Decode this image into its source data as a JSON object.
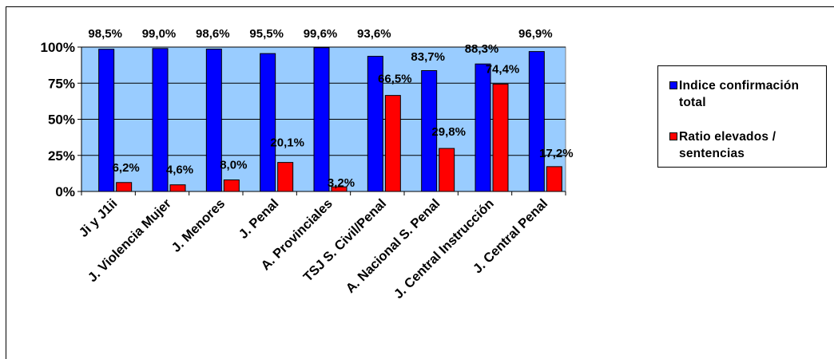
{
  "chart_data": {
    "type": "bar",
    "categories": [
      "Ji y J1ii",
      "J. Violencia Mujer",
      "J. Menores",
      "J. Penal",
      "A. Provinciales",
      "TSJ S. Civil/Penal",
      "A. Nacional S. Penal",
      "J. Central Instrucción",
      "J. Central  Penal"
    ],
    "series": [
      {
        "name": "Indice confirmación total",
        "color": "#0000ff",
        "values": [
          98.5,
          99.0,
          98.6,
          95.5,
          99.6,
          93.6,
          83.7,
          88.3,
          96.9
        ],
        "labels": [
          "98,5%",
          "99,0%",
          "98,6%",
          "95,5%",
          "99,6%",
          "93,6%",
          "83,7%",
          "88,3%",
          "96,9%"
        ]
      },
      {
        "name": "Ratio elevados / sentencias",
        "color": "#ff0000",
        "values": [
          6.2,
          4.6,
          8.0,
          20.1,
          3.2,
          66.5,
          29.8,
          74.4,
          17.2
        ],
        "labels": [
          "6,2%",
          "4,6%",
          "8,0%",
          "20,1%",
          "3,2%",
          "66,5%",
          "29,8%",
          "74,4%",
          "17,2%"
        ]
      }
    ],
    "y_ticks": [
      0,
      25,
      50,
      75,
      100
    ],
    "y_tick_labels": [
      "0%",
      "25%",
      "50%",
      "75%",
      "100%"
    ],
    "ylim": [
      0,
      100
    ],
    "grid": true,
    "legend_position": "right",
    "plot_background": "#99ccff",
    "legend_lines": [
      [
        "Indice confirmación",
        "total"
      ],
      [
        "Ratio elevados /",
        "sentencias"
      ]
    ]
  }
}
